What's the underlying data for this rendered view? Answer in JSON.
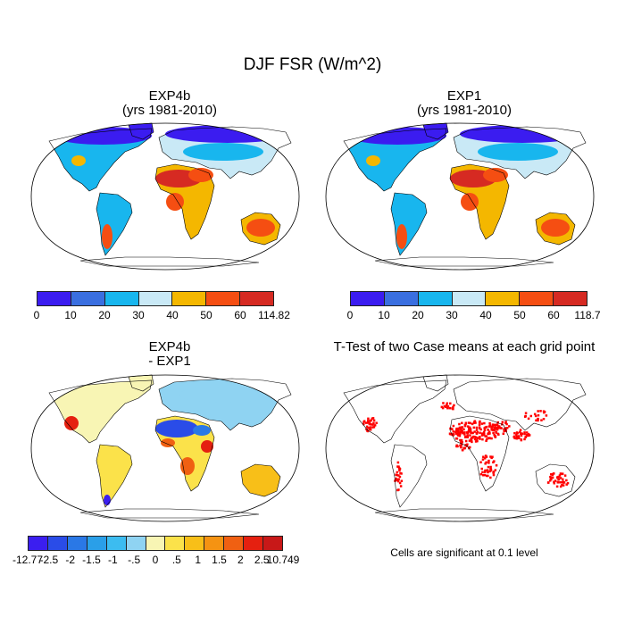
{
  "title": "DJF FSR (W/m^2)",
  "panels": [
    {
      "title_line1": "EXP4b",
      "title_line2": "(yrs 1981-2010)"
    },
    {
      "title_line1": "EXP1",
      "title_line2": "(yrs 1981-2010)"
    },
    {
      "title_line1": "EXP4b",
      "title_line2": "- EXP1"
    },
    {
      "title_line1": "T-Test of two Case means at each grid point",
      "title_line2": ""
    }
  ],
  "colorbars": [
    {
      "labels": [
        "0",
        "10",
        "20",
        "30",
        "40",
        "50",
        "60",
        "114.82"
      ],
      "colors": [
        "#3b1cf0",
        "#3a6fe0",
        "#18b6ee",
        "#c9e9f6",
        "#f4b700",
        "#f54e12",
        "#d62a22"
      ]
    },
    {
      "labels": [
        "0",
        "10",
        "20",
        "30",
        "40",
        "50",
        "60",
        "118.7"
      ],
      "colors": [
        "#3b1cf0",
        "#3a6fe0",
        "#18b6ee",
        "#c9e9f6",
        "#f4b700",
        "#f54e12",
        "#d62a22"
      ]
    },
    {
      "labels": [
        "-12.77",
        "-2.5",
        "-2",
        "-1.5",
        "-1",
        "-.5",
        "0",
        ".5",
        "1",
        "1.5",
        "2",
        "2.5",
        "10.749"
      ],
      "colors": [
        "#3b1ef0",
        "#2a4ce8",
        "#2a78e6",
        "#2a9fe8",
        "#3cbcf0",
        "#8fd3f2",
        "#f8f5b4",
        "#fbe24a",
        "#f8bf18",
        "#f59312",
        "#f06012",
        "#e52010",
        "#c81818"
      ]
    }
  ],
  "ttest_note": "Cells are significant at 0.1 level",
  "colors": {
    "significant": "#ff0000"
  }
}
